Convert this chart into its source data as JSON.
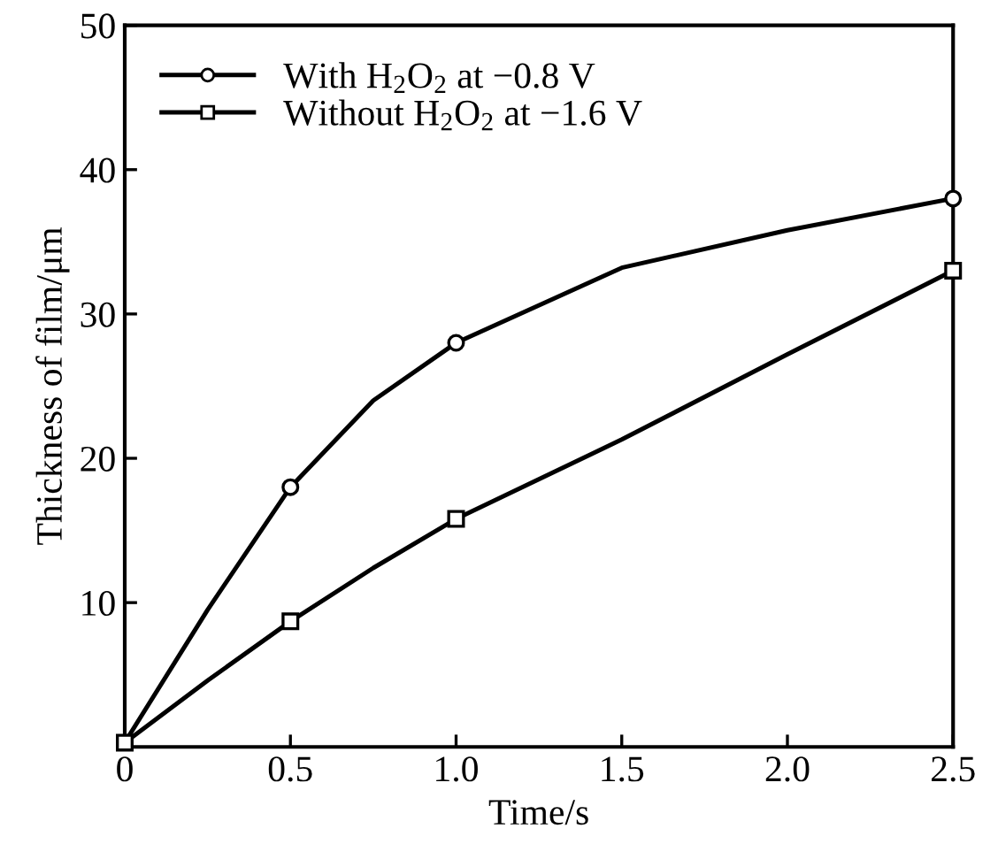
{
  "chart_data": {
    "type": "line",
    "xlabel": "Time/s",
    "ylabel": "Thickness of film/μm",
    "xlim": [
      0,
      2.5
    ],
    "ylim": [
      0,
      50
    ],
    "xticks": [
      0,
      {
        "value": 0.5,
        "label": "0.5"
      },
      {
        "value": 1.0,
        "label": "1.0"
      },
      {
        "value": 1.5,
        "label": "1.5"
      },
      {
        "value": 2.0,
        "label": "2.0"
      },
      {
        "value": 2.5,
        "label": "2.5"
      }
    ],
    "yticks": [
      10,
      20,
      30,
      40,
      50
    ],
    "x": [
      0,
      0.25,
      0.5,
      0.75,
      1.0,
      1.5,
      2.0,
      2.5
    ],
    "series": [
      {
        "name": "With H$_{2}$O$_{2}$ at −0.8 V",
        "color": "#000000",
        "values": [
          0.3,
          9.5,
          18,
          24,
          28,
          33.2,
          35.8,
          38
        ]
      },
      {
        "type": "scatter",
        "color": "#000000",
        "marker": "circle",
        "x": [
          0.5,
          1.0,
          2.5
        ],
        "values": [
          18,
          28,
          38
        ]
      },
      {
        "name": "Without H$_{2}$O$_{2}$ at −1.6 V",
        "color": "#000000",
        "values": [
          0.3,
          4.6,
          8.7,
          12.4,
          15.8,
          21.3,
          27.2,
          33
        ]
      },
      {
        "type": "scatter",
        "color": "#000000",
        "marker": "square",
        "x": [
          0,
          0.5,
          1.0,
          2.5
        ],
        "values": [
          0.3,
          8.7,
          15.8,
          33
        ]
      }
    ],
    "legend": "top left",
    "grid": false,
    "line_style": "solid"
  }
}
